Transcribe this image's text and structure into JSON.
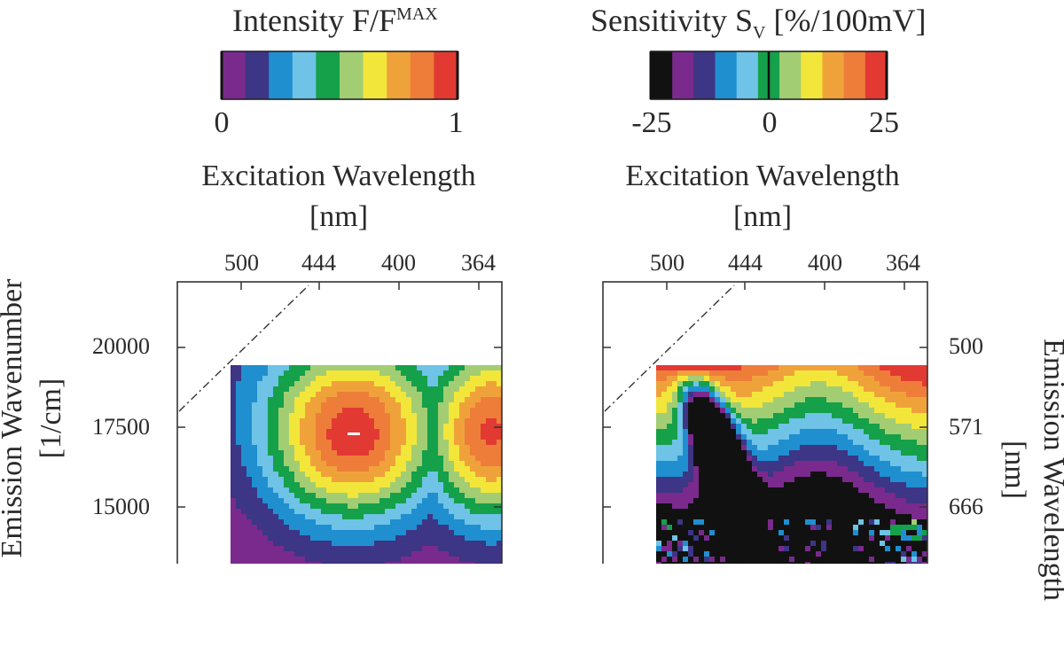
{
  "chart_data": [
    {
      "type": "heatmap",
      "colorbar": {
        "title_main": "Intensity F/F",
        "title_sup": "MAX",
        "ticks": [
          "0",
          "1"
        ],
        "range": [
          0,
          1
        ],
        "colors": [
          "#7a2a8c",
          "#3d3585",
          "#1f8fd0",
          "#6ec3e6",
          "#15a04a",
          "#a3cd72",
          "#f3e63a",
          "#f0a23a",
          "#ee7d3a",
          "#e23a33"
        ]
      },
      "x_axis": {
        "title_line1": "Excitation Wavelength",
        "title_line2": "[nm]",
        "ticks": [
          "500",
          "444",
          "400",
          "364"
        ]
      },
      "y_axis": {
        "title_line1": "Emission Wavenumber",
        "title_line2": "[1/cm]",
        "ticks": [
          "20000",
          "17500",
          "15000"
        ],
        "values": [
          20000,
          17500,
          15000
        ]
      },
      "features": {
        "peak_wavenumber": 17300,
        "peak_excitation_nm": 424,
        "secondary_peak_excitation_nm": 364
      }
    },
    {
      "type": "heatmap",
      "colorbar": {
        "title_main": "Sensitivity S",
        "title_sub": "V",
        "title_rest": " [%/100mV]",
        "ticks": [
          "-25",
          "0",
          "25"
        ],
        "range": [
          -25,
          25
        ],
        "colors": [
          "#111111",
          "#7a2a8c",
          "#3d3585",
          "#1f8fd0",
          "#6ec3e6",
          "#15a04a",
          "#a3cd72",
          "#f3e63a",
          "#f0a23a",
          "#ee7d3a",
          "#e23a33"
        ]
      },
      "x_axis": {
        "title_line1": "Excitation Wavelength",
        "title_line2": "[nm]",
        "ticks": [
          "500",
          "444",
          "400",
          "364"
        ]
      },
      "y_axis": {
        "title_line1": "Emission Wavelength",
        "title_line2": "[nm]",
        "ticks": [
          "500",
          "571",
          "666"
        ],
        "values": [
          500,
          571,
          666
        ]
      }
    }
  ]
}
